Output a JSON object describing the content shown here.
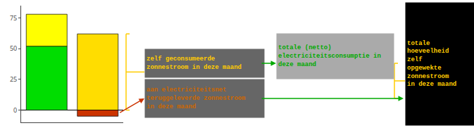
{
  "chart_data": {
    "type": "bar",
    "stacked": true,
    "categories": [
      null,
      null
    ],
    "series": [
      {
        "color": "#00dd00",
        "values": [
          52,
          null
        ]
      },
      {
        "color": "#ffff00",
        "values": [
          26,
          null
        ]
      },
      {
        "color": "#ffdd00",
        "values": [
          null,
          62
        ]
      },
      {
        "color": "#cc3300",
        "values": [
          null,
          -5
        ]
      }
    ],
    "ylim": [
      -10,
      85
    ],
    "yticks": [
      0,
      25,
      50,
      75
    ],
    "grid": false,
    "tick_labels": "y",
    "annotations": [
      {
        "text": "zelf geconsumeerde\nzonnestroom in deze maand",
        "color": "#ffcc00",
        "background": "#666666"
      },
      {
        "text": "aan electriciteitsnet\nteruggeleverde zonnestroom\nin deze maand",
        "color": "#cc6600",
        "background": "#666666"
      },
      {
        "text": "totale (netto)\nelectriciteitsconsumptie in\ndeze maand",
        "color": "#00aa00",
        "background": "#aaaaaa"
      },
      {
        "text": "totale\nhoeveelheid\nzelf\nopgewekte\nzonnestroom\nin deze maand",
        "color": "#ffcc00",
        "background": "#000000"
      }
    ]
  }
}
